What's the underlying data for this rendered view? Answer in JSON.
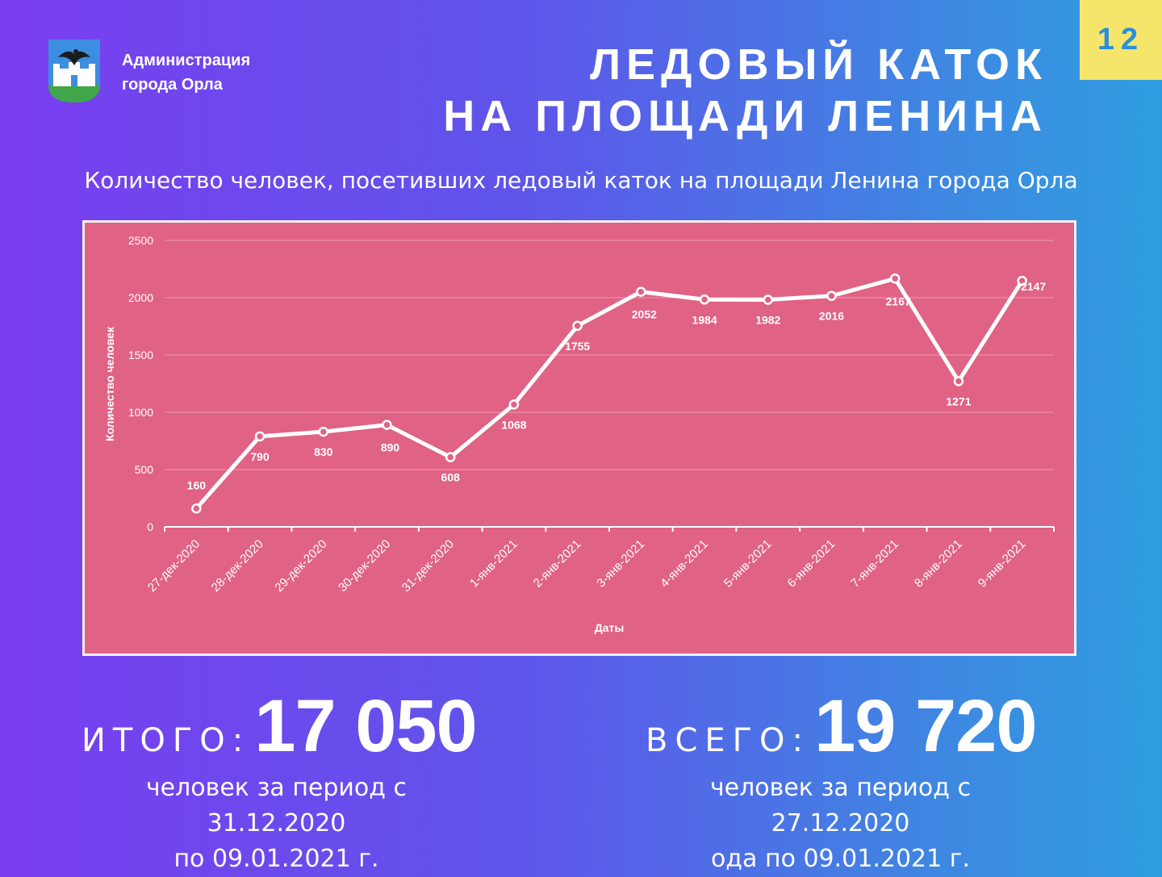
{
  "header": {
    "org_line1": "Администрация",
    "org_line2": "города Орла",
    "page_number": "12",
    "title_line1": "ЛЕДОВЫЙ КАТОК",
    "title_line2": "НА ПЛОЩАДИ ЛЕНИНА",
    "logo_icon": "orel-coat-of-arms-icon"
  },
  "chart_data": {
    "type": "line",
    "title": "Количество человек, посетивших ледовый каток на площади Ленина города Орла",
    "xlabel": "Даты",
    "ylabel": "Количество человек",
    "categories": [
      "27-дек-2020",
      "28-дек-2020",
      "29-дек-2020",
      "30-дек-2020",
      "31-дек-2020",
      "1-янв-2021",
      "2-янв-2021",
      "3-янв-2021",
      "4-янв-2021",
      "5-янв-2021",
      "6-янв-2021",
      "7-янв-2021",
      "8-янв-2021",
      "9-янв-2021"
    ],
    "values": [
      160,
      790,
      830,
      890,
      608,
      1068,
      1755,
      2052,
      1984,
      1982,
      2016,
      2167,
      1271,
      2147
    ],
    "ylim": [
      0,
      2500
    ],
    "yticks": [
      0,
      500,
      1000,
      1500,
      2000,
      2500
    ],
    "grid": true,
    "data_labels": true,
    "colors": {
      "background": "#e06285",
      "line": "#ffffff",
      "grid": "#ec9ab0"
    }
  },
  "totals": {
    "left": {
      "label": "ИТОГО:",
      "value": "17 050",
      "period_line1": "человек за период с 31.12.2020",
      "period_line2": "по 09.01.2021 г."
    },
    "right": {
      "label": "ВСЕГО:",
      "value": "19 720",
      "period_line1": "человек за период с 27.12.2020",
      "period_line2": "ода по 09.01.2021 г."
    }
  }
}
